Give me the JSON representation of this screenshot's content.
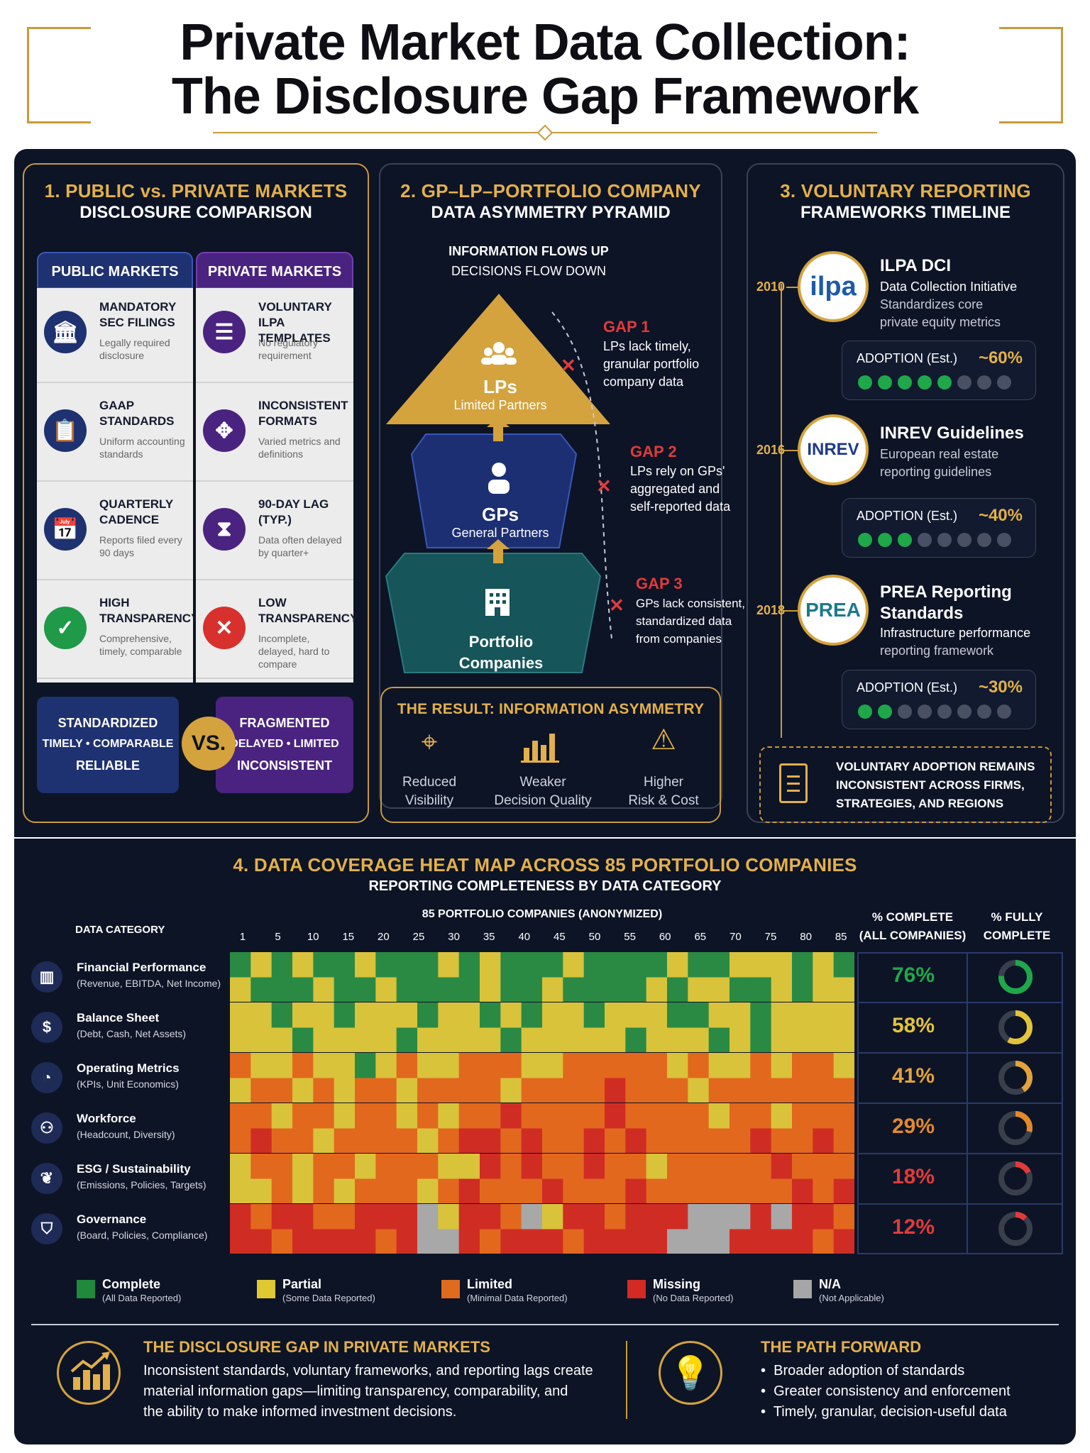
{
  "title": {
    "line1": "Private Market Data Collection:",
    "line2": "The Disclosure Gap Framework"
  },
  "section1": {
    "title": "1. PUBLIC vs. PRIVATE MARKETS",
    "subtitle": "DISCLOSURE COMPARISON",
    "public_header": "PUBLIC MARKETS",
    "private_header": "PRIVATE MARKETS",
    "public_rows": [
      {
        "icon": "bank-icon",
        "title": "MANDATORY SEC FILINGS",
        "desc": "Legally required disclosure"
      },
      {
        "icon": "clipboard-icon",
        "title": "GAAP STANDARDS",
        "desc": "Uniform accounting standards"
      },
      {
        "icon": "calendar-icon",
        "title": "QUARTERLY CADENCE",
        "desc": "Reports filed every 90 days"
      },
      {
        "icon": "check-icon",
        "title": "HIGH TRANSPARENCY",
        "desc": "Comprehensive, timely, comparable"
      }
    ],
    "private_rows": [
      {
        "icon": "document-icon",
        "title": "VOLUNTARY ILPA TEMPLATES",
        "desc": "No regulatory requirement"
      },
      {
        "icon": "puzzle-icon",
        "title": "INCONSISTENT FORMATS",
        "desc": "Varied metrics and definitions"
      },
      {
        "icon": "hourglass-icon",
        "title": "90-DAY LAG (TYP.)",
        "desc": "Data often delayed by quarter+"
      },
      {
        "icon": "x-icon",
        "title": "LOW TRANSPARENCY",
        "desc": "Incomplete, delayed, hard to compare"
      }
    ],
    "public_summary": [
      "STANDARDIZED",
      "TIMELY • COMPARABLE",
      "RELIABLE"
    ],
    "vs_label": "VS.",
    "private_summary": [
      "FRAGMENTED",
      "DELAYED • LIMITED",
      "INCONSISTENT"
    ]
  },
  "section2": {
    "title": "2. GP–LP–PORTFOLIO COMPANY",
    "subtitle": "DATA ASYMMETRY PYRAMID",
    "flow_line1": "INFORMATION FLOWS UP",
    "flow_line2": "DECISIONS FLOW DOWN",
    "tiers": [
      {
        "name": "LPs",
        "sub": "Limited Partners"
      },
      {
        "name": "GPs",
        "sub": "General Partners"
      },
      {
        "name": "Portfolio",
        "sub": "Companies"
      }
    ],
    "gaps": [
      {
        "label": "GAP 1",
        "desc": [
          "LPs lack timely,",
          "granular portfolio",
          "company data"
        ]
      },
      {
        "label": "GAP 2",
        "desc": [
          "LPs rely on GPs'",
          "aggregated and",
          "self-reported data"
        ]
      },
      {
        "label": "GAP 3",
        "desc": [
          "GPs lack consistent,",
          "standardized data",
          "from companies"
        ]
      }
    ],
    "result_title": "THE RESULT: INFORMATION ASYMMETRY",
    "results": [
      {
        "icon": "target-icon",
        "l1": "Reduced",
        "l2": "Visibility"
      },
      {
        "icon": "bar-chart-icon",
        "l1": "Weaker",
        "l2": "Decision Quality"
      },
      {
        "icon": "warning-icon",
        "l1": "Higher",
        "l2": "Risk & Cost"
      }
    ]
  },
  "section3": {
    "title": "3. VOLUNTARY REPORTING",
    "subtitle": "FRAMEWORKS TIMELINE",
    "frameworks": [
      {
        "year": "2010",
        "logo": "ilpa",
        "name": "ILPA DCI",
        "desc": [
          "Data Collection Initiative",
          "Standardizes core",
          "private equity metrics"
        ],
        "adoption_label": "ADOPTION (Est.)",
        "adoption_value": "~60%",
        "dots_on": 5
      },
      {
        "year": "2016",
        "logo": "INREV",
        "name": "INREV Guidelines",
        "desc": [
          "European real estate",
          "reporting guidelines"
        ],
        "adoption_label": "ADOPTION (Est.)",
        "adoption_value": "~40%",
        "dots_on": 3
      },
      {
        "year": "2018",
        "logo": "PREA",
        "name": "PREA Reporting Standards",
        "desc": [
          "Infrastructure performance",
          "reporting framework"
        ],
        "adoption_label": "ADOPTION (Est.)",
        "adoption_value": "~30%",
        "dots_on": 2
      }
    ],
    "note": [
      "VOLUNTARY ADOPTION REMAINS",
      "INCONSISTENT ACROSS FIRMS,",
      "STRATEGIES, AND REGIONS"
    ]
  },
  "section4": {
    "title": "4. DATA COVERAGE HEAT MAP ACROSS 85 PORTFOLIO COMPANIES",
    "subtitle": "REPORTING COMPLETENESS BY DATA CATEGORY",
    "category_header": "DATA CATEGORY",
    "companies_header": "85 PORTFOLIO COMPANIES (ANONYMIZED)",
    "col_pct_header": [
      "% COMPLETE",
      "(ALL COMPANIES)"
    ],
    "col_full_header": [
      "% FULLY",
      "COMPLETE"
    ],
    "x_ticks": [
      "1",
      "5",
      "10",
      "15",
      "20",
      "25",
      "30",
      "35",
      "40",
      "45",
      "50",
      "55",
      "60",
      "65",
      "70",
      "75",
      "80",
      "85"
    ],
    "rows": [
      {
        "icon": "bar-chart-icon",
        "name": "Financial Performance",
        "sub": "(Revenue, EBITDA, Net Income)",
        "pct": "76%",
        "pct_value": 76,
        "full_value": 76
      },
      {
        "icon": "dollar-icon",
        "name": "Balance Sheet",
        "sub": "(Debt, Cash, Net Assets)",
        "pct": "58%",
        "pct_value": 58,
        "full_value": 58
      },
      {
        "icon": "pie-chart-icon",
        "name": "Operating Metrics",
        "sub": "(KPIs, Unit Economics)",
        "pct": "41%",
        "pct_value": 41,
        "full_value": 41
      },
      {
        "icon": "people-icon",
        "name": "Workforce",
        "sub": "(Headcount, Diversity)",
        "pct": "29%",
        "pct_value": 29,
        "full_value": 29
      },
      {
        "icon": "leaf-icon",
        "name": "ESG / Sustainability",
        "sub": "(Emissions, Policies, Targets)",
        "pct": "18%",
        "pct_value": 18,
        "full_value": 18
      },
      {
        "icon": "shield-icon",
        "name": "Governance",
        "sub": "(Board, Policies, Compliance)",
        "pct": "12%",
        "pct_value": 12,
        "full_value": 12
      }
    ],
    "legend": [
      {
        "name": "Complete",
        "sub": "(All Data Reported)",
        "color": "#1f8a3c"
      },
      {
        "name": "Partial",
        "sub": "(Some Data Reported)",
        "color": "#e0c832"
      },
      {
        "name": "Limited",
        "sub": "(Minimal Data Reported)",
        "color": "#e06a1e"
      },
      {
        "name": "Missing",
        "sub": "(No Data Reported)",
        "color": "#d42a24"
      },
      {
        "name": "N/A",
        "sub": "(Not Applicable)",
        "color": "#a6a6a6"
      }
    ],
    "pct_colors": [
      "#1fa84a",
      "#e3c33a",
      "#e3a23a",
      "#e3892b",
      "#e23a3a",
      "#e23a3a"
    ]
  },
  "bottom": {
    "left_title": "THE DISCLOSURE GAP IN PRIVATE MARKETS",
    "left_text": [
      "Inconsistent standards, voluntary frameworks, and reporting lags create",
      "material information gaps—limiting transparency, comparability, and",
      "the ability to make informed investment decisions."
    ],
    "right_title": "THE PATH FORWARD",
    "right_items": [
      "Broader adoption of standards",
      "Greater consistency and enforcement",
      "Timely, granular, decision-useful data"
    ]
  },
  "colors": {
    "navy": "#0d1426",
    "gold": "#e3b04b",
    "public_blue": "#1e3170",
    "private_purple": "#4a2380"
  }
}
